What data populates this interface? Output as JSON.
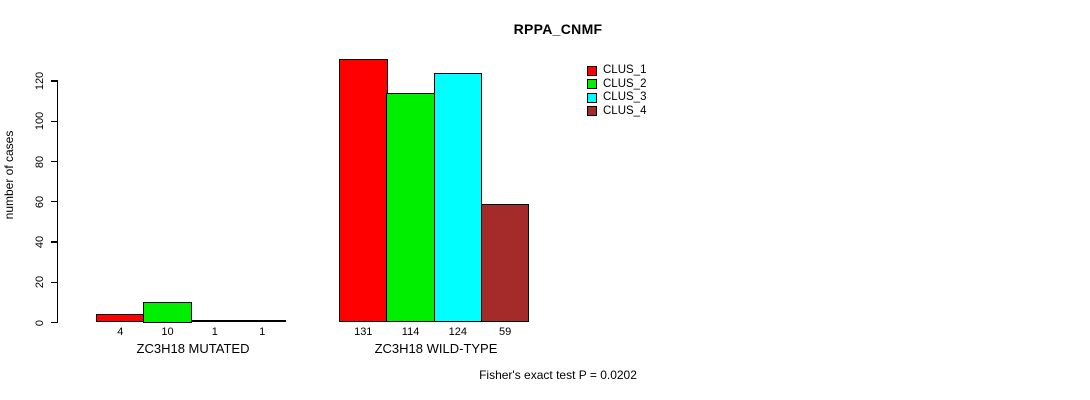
{
  "chart_data": {
    "type": "bar",
    "title": "RPPA_CNMF",
    "ylabel": "number of cases",
    "xlabel": "",
    "footer": "Fisher's exact test P = 0.0202",
    "ylim": [
      0,
      131
    ],
    "yticks": [
      0,
      20,
      40,
      60,
      80,
      100,
      120
    ],
    "grid": false,
    "legend_position": "top-right",
    "series": [
      {
        "name": "CLUS_1",
        "color": "#FF0000"
      },
      {
        "name": "CLUS_2",
        "color": "#00EE00"
      },
      {
        "name": "CLUS_3",
        "color": "#00FFFF"
      },
      {
        "name": "CLUS_4",
        "color": "#A52A2A"
      }
    ],
    "groups": [
      {
        "label": "ZC3H18 MUTATED",
        "values": [
          4,
          10,
          1,
          1
        ]
      },
      {
        "label": "ZC3H18 WILD-TYPE",
        "values": [
          131,
          114,
          124,
          59
        ]
      }
    ]
  }
}
